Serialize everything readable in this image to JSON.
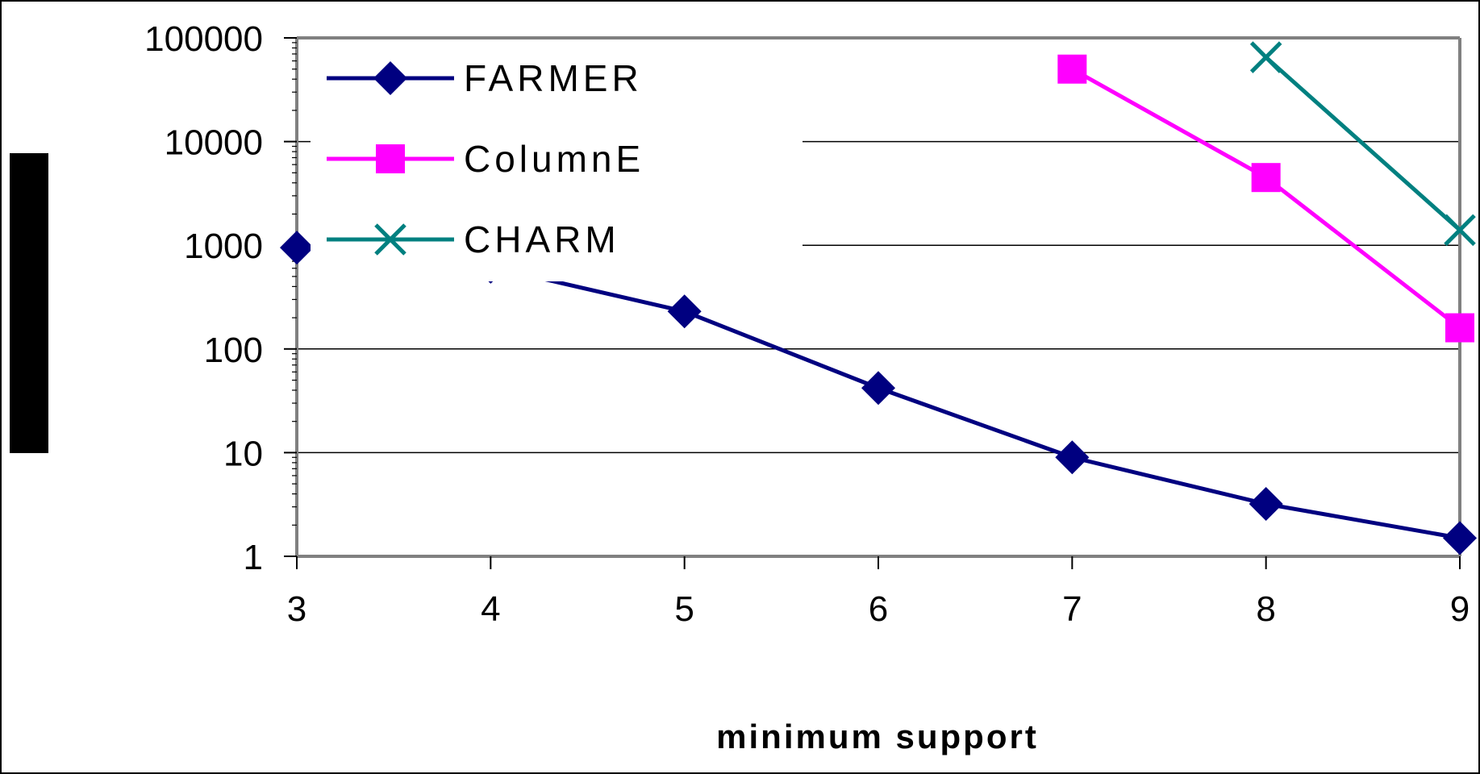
{
  "chart_data": {
    "type": "line",
    "xlabel": "minimum support",
    "ylabel": "",
    "y_scale": "log",
    "ylim": [
      1,
      100000
    ],
    "xlim": [
      3,
      9
    ],
    "x_ticks": [
      "3",
      "4",
      "5",
      "6",
      "7",
      "8",
      "9"
    ],
    "y_ticks": [
      "1",
      "10",
      "100",
      "1000",
      "10000",
      "100000"
    ],
    "grid": "horizontal",
    "legend_position": "top-left",
    "series": [
      {
        "name": "FARMER",
        "marker": "diamond",
        "color": "#000080",
        "x": [
          3,
          4,
          5,
          6,
          7,
          8,
          9
        ],
        "y": [
          950,
          620,
          230,
          42,
          9,
          3.2,
          1.5
        ]
      },
      {
        "name": "ColumnE",
        "marker": "square",
        "color": "#FF00FF",
        "x": [
          7,
          8,
          9
        ],
        "y": [
          50000,
          4500,
          160
        ]
      },
      {
        "name": "CHARM",
        "marker": "x",
        "color": "#008080",
        "x": [
          8,
          9
        ],
        "y": [
          65000,
          1400
        ]
      }
    ]
  }
}
